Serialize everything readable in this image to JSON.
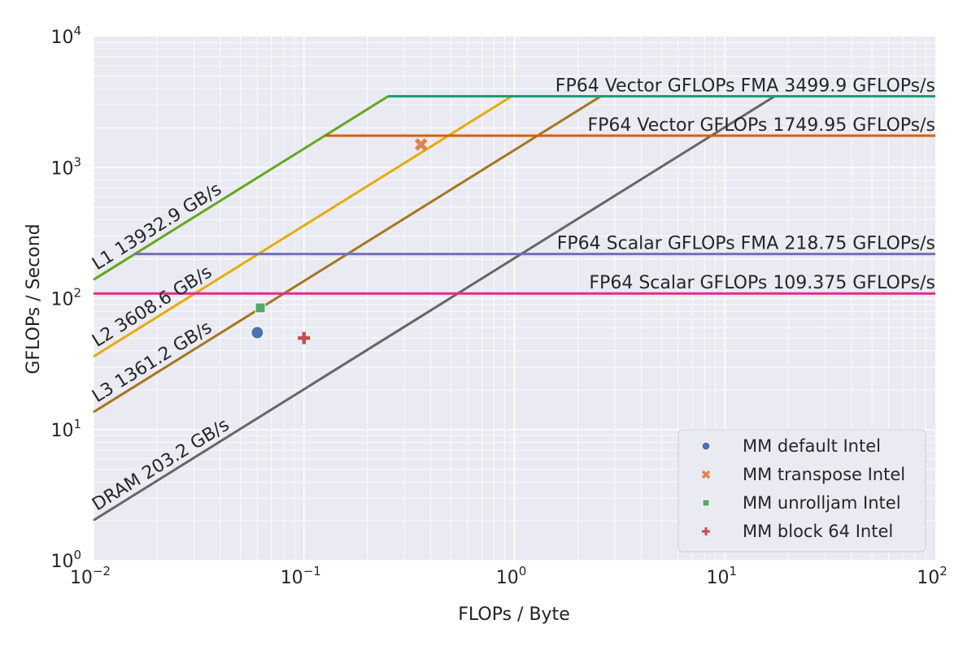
{
  "chart_data": {
    "type": "line",
    "subtype": "roofline",
    "xlabel": "FLOPs / Byte",
    "ylabel": "GFLOPs / Second",
    "x_scale": "log",
    "y_scale": "log",
    "xlim": [
      0.01,
      100
    ],
    "ylim": [
      1,
      10000
    ],
    "grid": true,
    "legend_position": "bottom-right",
    "x_ticks": [
      {
        "base": "10",
        "exp": "−2"
      },
      {
        "base": "10",
        "exp": "−1"
      },
      {
        "base": "10",
        "exp": "0"
      },
      {
        "base": "10",
        "exp": "1"
      },
      {
        "base": "10",
        "exp": "2"
      }
    ],
    "y_ticks": [
      {
        "base": "10",
        "exp": "0"
      },
      {
        "base": "10",
        "exp": "1"
      },
      {
        "base": "10",
        "exp": "2"
      },
      {
        "base": "10",
        "exp": "3"
      },
      {
        "base": "10",
        "exp": "4"
      }
    ],
    "bandwidth_lines": [
      {
        "label": "L1 13932.9 GB/s",
        "bandwidth": 13932.9,
        "roof": 3499.9,
        "color": "#66a61e"
      },
      {
        "label": "L2 3608.6 GB/s",
        "bandwidth": 3608.6,
        "roof": 3499.9,
        "color": "#e6ab02"
      },
      {
        "label": "L3 1361.2 GB/s",
        "bandwidth": 1361.2,
        "roof": 3499.9,
        "color": "#a6761d"
      },
      {
        "label": "DRAM 203.2 GB/s",
        "bandwidth": 203.2,
        "roof": 3499.9,
        "color": "#666666"
      }
    ],
    "compute_roofs": [
      {
        "label": "FP64 Vector GFLOPs FMA 3499.9 GFLOPs/s",
        "value": 3499.9,
        "start_x": 0.2512,
        "color": "#1b9e77"
      },
      {
        "label": "FP64 Vector GFLOPs 1749.95 GFLOPs/s",
        "value": 1749.95,
        "start_x": 0.1256,
        "color": "#d95f02"
      },
      {
        "label": "FP64 Scalar GFLOPs FMA 218.75 GFLOPs/s",
        "value": 218.75,
        "start_x": 0.0157,
        "color": "#7570b3"
      },
      {
        "label": "FP64 Scalar GFLOPs 109.375 GFLOPs/s",
        "value": 109.375,
        "start_x": 0.01,
        "color": "#e7298a"
      }
    ],
    "series": [
      {
        "name": "MM default Intel",
        "marker": "circle",
        "color": "#4c72b0",
        "x": [
          0.06
        ],
        "y": [
          55
        ]
      },
      {
        "name": "MM transpose Intel",
        "marker": "x",
        "color": "#dd8452",
        "x": [
          0.36
        ],
        "y": [
          1500
        ]
      },
      {
        "name": "MM unrolljam Intel",
        "marker": "square",
        "color": "#55a868",
        "x": [
          0.062
        ],
        "y": [
          85
        ]
      },
      {
        "name": "MM block 64 Intel",
        "marker": "plus",
        "color": "#c44e52",
        "x": [
          0.1
        ],
        "y": [
          50
        ]
      }
    ]
  }
}
